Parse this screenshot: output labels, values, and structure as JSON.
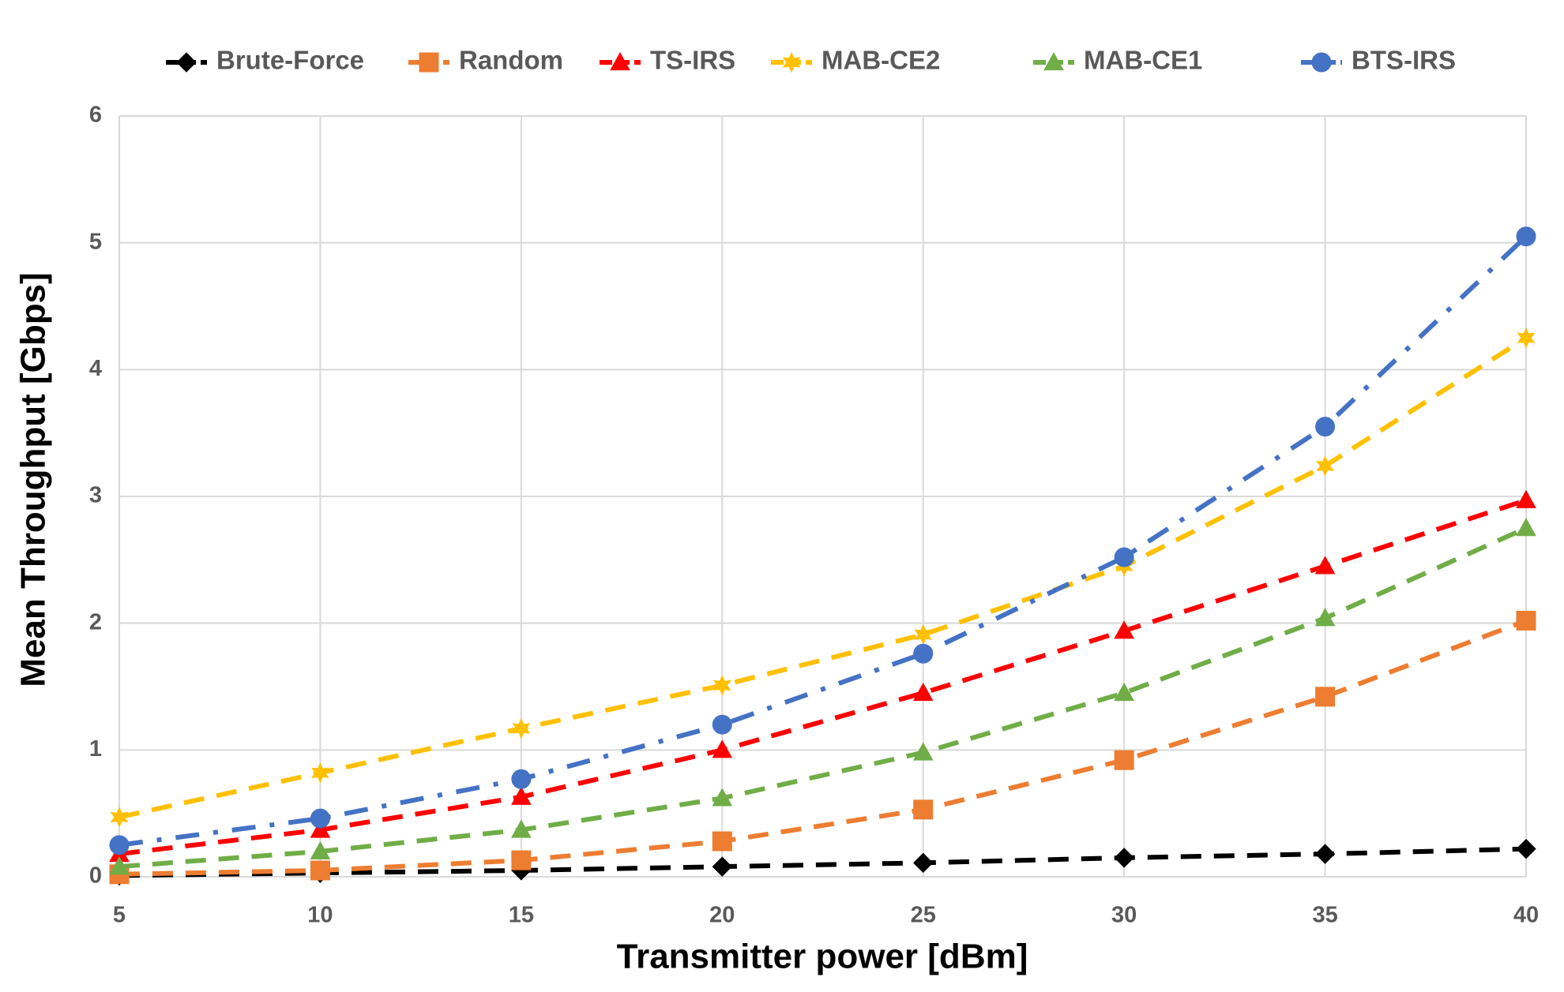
{
  "chart_data": {
    "type": "line",
    "xlabel": "Transmitter power [dBm]",
    "ylabel": "Mean Throughput [Gbps]",
    "x": [
      5,
      10,
      15,
      20,
      25,
      30,
      35,
      40
    ],
    "xlim": [
      5,
      40
    ],
    "xticks": [
      5,
      10,
      15,
      20,
      25,
      30,
      35,
      40
    ],
    "ylim": [
      0,
      6
    ],
    "yticks": [
      0,
      1,
      2,
      3,
      4,
      5,
      6
    ],
    "grid": true,
    "legend": "top",
    "series": [
      {
        "name": "Brute-Force",
        "color": "#000000",
        "marker": "diamond",
        "dash": "dash",
        "values": [
          0.01,
          0.03,
          0.05,
          0.08,
          0.11,
          0.15,
          0.18,
          0.22
        ]
      },
      {
        "name": "Random",
        "color": "#ed7d31",
        "marker": "square",
        "dash": "dash",
        "values": [
          0.02,
          0.05,
          0.13,
          0.28,
          0.53,
          0.92,
          1.42,
          2.02
        ]
      },
      {
        "name": "TS-IRS",
        "color": "#ff0000",
        "marker": "triangle",
        "dash": "dash",
        "values": [
          0.18,
          0.37,
          0.63,
          1.0,
          1.45,
          1.94,
          2.45,
          2.97
        ]
      },
      {
        "name": "MAB-CE2",
        "color": "#ffc000",
        "marker": "star",
        "dash": "dash",
        "values": [
          0.47,
          0.82,
          1.17,
          1.51,
          1.91,
          2.45,
          3.24,
          4.25
        ]
      },
      {
        "name": "MAB-CE1",
        "color": "#70ad47",
        "marker": "triangle",
        "dash": "dash",
        "values": [
          0.08,
          0.2,
          0.37,
          0.62,
          0.98,
          1.45,
          2.04,
          2.75
        ]
      },
      {
        "name": "BTS-IRS",
        "color": "#4472c4",
        "marker": "circle",
        "dash": "dashdot",
        "values": [
          0.25,
          0.46,
          0.77,
          1.2,
          1.76,
          2.52,
          3.55,
          5.05
        ]
      }
    ]
  }
}
